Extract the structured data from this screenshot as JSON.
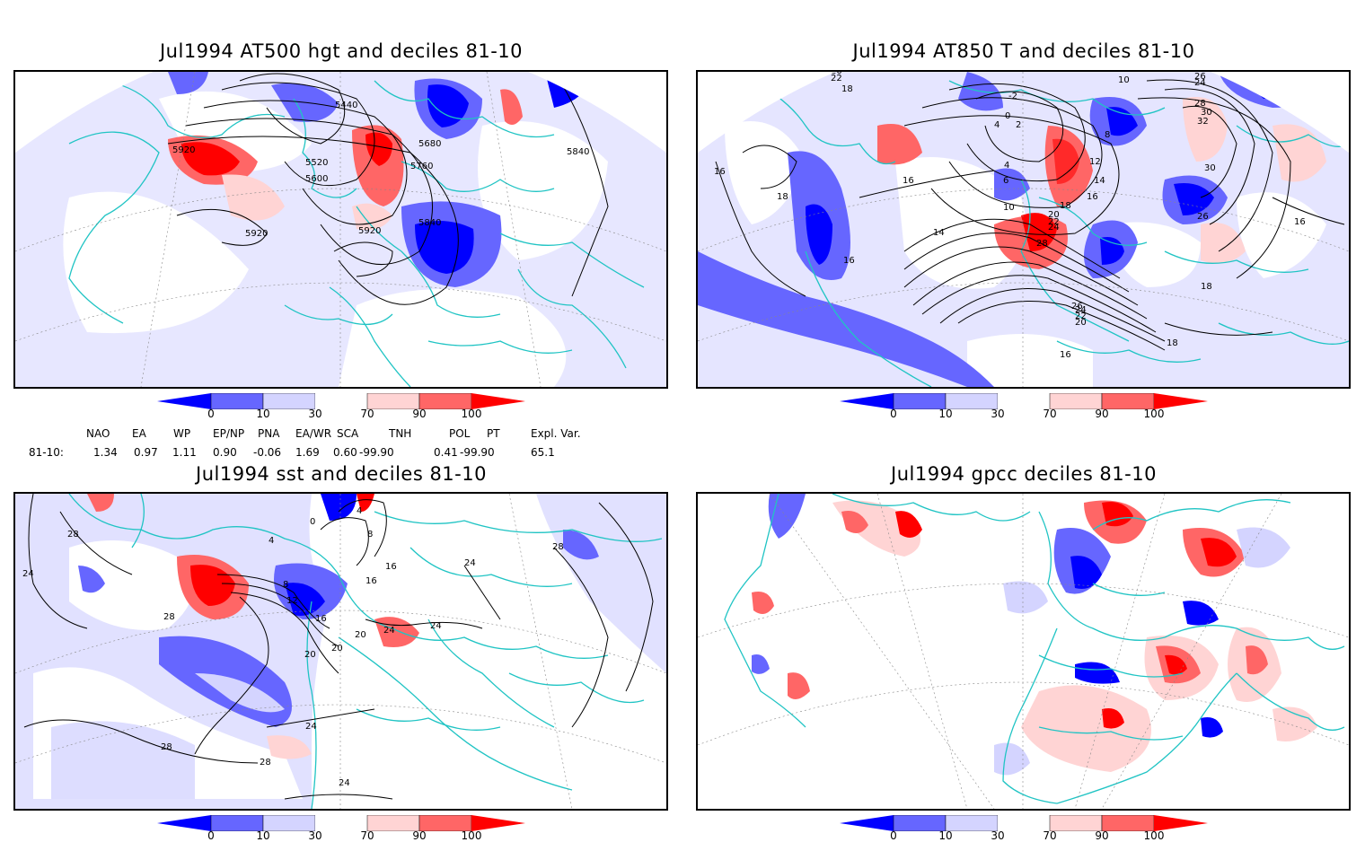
{
  "panels": [
    {
      "title": "Jul1994 AT500 hgt and deciles 81-10",
      "contour_labels": [
        "5440",
        "5600",
        "5520",
        "5600",
        "5680",
        "5760",
        "5840",
        "5920",
        "5920",
        "5920",
        "5840"
      ]
    },
    {
      "title": "Jul1994 AT850 T and deciles 81-10",
      "contour_labels": [
        "20",
        "22",
        "18",
        "10",
        "-2",
        "0",
        "2",
        "4",
        "8",
        "12",
        "14",
        "16",
        "18",
        "19",
        "20",
        "22",
        "24",
        "26",
        "28",
        "16",
        "16",
        "18",
        "16",
        "14",
        "10",
        "6",
        "4",
        "26",
        "24",
        "22",
        "20",
        "18",
        "16",
        "24",
        "26",
        "28",
        "30",
        "32",
        "30",
        "26",
        "16",
        "18",
        "16"
      ]
    },
    {
      "title": "Jul1994 sst and deciles 81-10",
      "contour_labels": [
        "28",
        "24",
        "28",
        "8",
        "12",
        "16",
        "20",
        "28",
        "24",
        "20",
        "24",
        "24",
        "28",
        "28",
        "24",
        "16",
        "0",
        "4",
        "8",
        "16",
        "20",
        "24",
        "24",
        "28",
        "4"
      ]
    },
    {
      "title": "Jul1994 gpcc deciles 81-10",
      "contour_labels": []
    }
  ],
  "colorbar": {
    "labels": [
      "0",
      "10",
      "30",
      "70",
      "90",
      "100"
    ],
    "colors": [
      "#0000ff",
      "#6666ff",
      "#d4d4ff",
      "#ffffff",
      "#ffd4d4",
      "#ff6666",
      "#ff0000"
    ]
  },
  "indices": {
    "headers": [
      "NAO",
      "EA",
      "WP",
      "EP/NP",
      "PNA",
      "EA/WR",
      "SCA",
      "TNH",
      "POL",
      "PT",
      "Expl. Var."
    ],
    "row_label": "81-10:",
    "values": [
      "1.34",
      "0.97",
      "1.11",
      "0.90",
      "-0.06",
      "1.69",
      "0.60",
      "-99.90",
      "0.41",
      "-99.90",
      "65.1"
    ]
  },
  "colors": {
    "coastline": "#20c4c4",
    "deep_blue": "#0000ff",
    "mid_blue": "#6666ff",
    "light_blue": "#d4d4ff",
    "light_red": "#ffd4d4",
    "mid_red": "#ff6666",
    "deep_red": "#ff0000"
  }
}
